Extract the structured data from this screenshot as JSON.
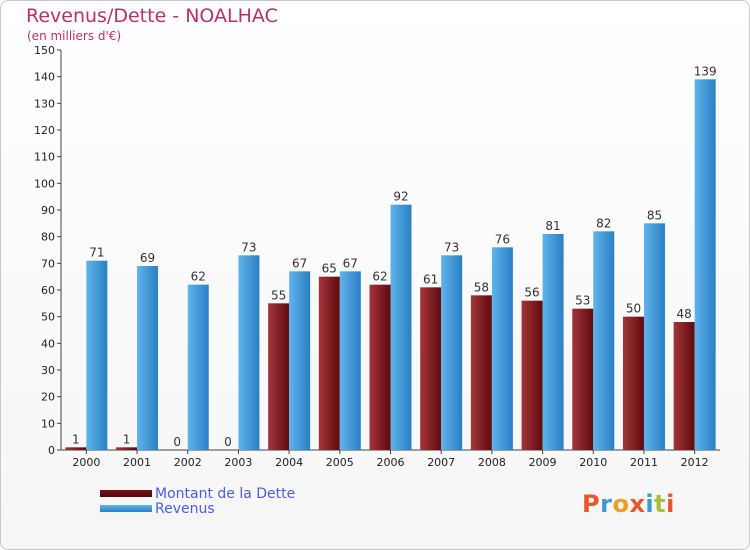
{
  "title": "Revenus/Dette - NOALHAC",
  "subtitle": "(en milliers d'€)",
  "logo_text": "Proxiti",
  "colors": {
    "dette": "#7a1014",
    "revenus": "#3d9ad9",
    "title": "#b8306b",
    "legend_text": "#4a5be6"
  },
  "chart_data": {
    "type": "bar",
    "categories": [
      "2000",
      "2001",
      "2002",
      "2003",
      "2004",
      "2005",
      "2006",
      "2007",
      "2008",
      "2009",
      "2010",
      "2011",
      "2012"
    ],
    "series": [
      {
        "name": "Montant de la Dette",
        "color": "#7a1014",
        "values": [
          1,
          1,
          0,
          0,
          55,
          65,
          62,
          61,
          58,
          56,
          53,
          50,
          48
        ]
      },
      {
        "name": "Revenus",
        "color": "#3d9ad9",
        "values": [
          71,
          69,
          62,
          73,
          67,
          67,
          92,
          73,
          76,
          81,
          82,
          85,
          139
        ]
      }
    ],
    "ylim": [
      0,
      150
    ],
    "yticks": [
      0,
      10,
      20,
      30,
      40,
      50,
      60,
      70,
      80,
      90,
      100,
      110,
      120,
      130,
      140,
      150
    ],
    "grid": false,
    "legend_position": "bottom-left"
  }
}
